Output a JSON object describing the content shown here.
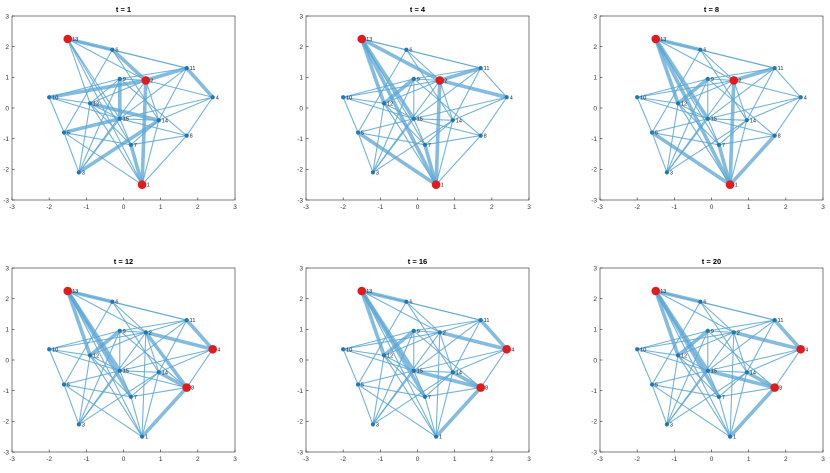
{
  "chart_data": {
    "type": "network",
    "layout": "2x3 grid of panels",
    "xlim": [
      -3,
      3
    ],
    "ylim": [
      -3,
      3
    ],
    "xticks": [
      "-3",
      "-2",
      "-1",
      "0",
      "1",
      "2",
      "3"
    ],
    "yticks": [
      "3",
      "2",
      "1",
      "0",
      "-1",
      "-2",
      "-3"
    ],
    "colors": {
      "edge": "#5aa6d6",
      "node": "#1f77b4",
      "highlight": "#e31a1c",
      "axes": "#262626"
    },
    "nodes": [
      {
        "id": "1",
        "x": 0.5,
        "y": -2.5
      },
      {
        "id": "2",
        "x": 0.6,
        "y": 0.9
      },
      {
        "id": "3",
        "x": -1.2,
        "y": -2.1
      },
      {
        "id": "4",
        "x": 2.4,
        "y": 0.35
      },
      {
        "id": "5",
        "x": -1.6,
        "y": -0.8
      },
      {
        "id": "6",
        "x": -0.3,
        "y": 1.9
      },
      {
        "id": "7",
        "x": 0.2,
        "y": -1.2
      },
      {
        "id": "8",
        "x": 1.7,
        "y": -0.9
      },
      {
        "id": "9",
        "x": -0.1,
        "y": 0.95
      },
      {
        "id": "10",
        "x": -2.0,
        "y": 0.35
      },
      {
        "id": "11",
        "x": 1.7,
        "y": 1.3
      },
      {
        "id": "12",
        "x": -0.9,
        "y": 0.15
      },
      {
        "id": "13",
        "x": -1.5,
        "y": 2.25
      },
      {
        "id": "14",
        "x": 0.95,
        "y": -0.4
      },
      {
        "id": "15",
        "x": -0.1,
        "y": -0.35
      }
    ],
    "edges": [
      [
        "13",
        "6"
      ],
      [
        "13",
        "12"
      ],
      [
        "13",
        "15"
      ],
      [
        "13",
        "7"
      ],
      [
        "13",
        "1"
      ],
      [
        "13",
        "11"
      ],
      [
        "13",
        "2"
      ],
      [
        "6",
        "11"
      ],
      [
        "6",
        "2"
      ],
      [
        "6",
        "14"
      ],
      [
        "6",
        "5"
      ],
      [
        "10",
        "9"
      ],
      [
        "10",
        "2"
      ],
      [
        "10",
        "12"
      ],
      [
        "10",
        "15"
      ],
      [
        "10",
        "5"
      ],
      [
        "12",
        "9"
      ],
      [
        "12",
        "2"
      ],
      [
        "12",
        "15"
      ],
      [
        "12",
        "7"
      ],
      [
        "12",
        "3"
      ],
      [
        "9",
        "2"
      ],
      [
        "9",
        "15"
      ],
      [
        "9",
        "8"
      ],
      [
        "9",
        "11"
      ],
      [
        "2",
        "11"
      ],
      [
        "2",
        "4"
      ],
      [
        "2",
        "14"
      ],
      [
        "2",
        "1"
      ],
      [
        "2",
        "3"
      ],
      [
        "11",
        "4"
      ],
      [
        "11",
        "14"
      ],
      [
        "11",
        "15"
      ],
      [
        "4",
        "15"
      ],
      [
        "4",
        "14"
      ],
      [
        "4",
        "8"
      ],
      [
        "15",
        "14"
      ],
      [
        "15",
        "8"
      ],
      [
        "15",
        "7"
      ],
      [
        "15",
        "3"
      ],
      [
        "15",
        "5"
      ],
      [
        "14",
        "7"
      ],
      [
        "14",
        "1"
      ],
      [
        "14",
        "3"
      ],
      [
        "8",
        "7"
      ],
      [
        "8",
        "1"
      ],
      [
        "7",
        "1"
      ],
      [
        "7",
        "5"
      ],
      [
        "5",
        "1"
      ],
      [
        "5",
        "3"
      ],
      [
        "3",
        "9"
      ],
      [
        "1",
        "12"
      ]
    ],
    "panels": [
      {
        "title": "t = 1",
        "highlight": [
          "13",
          "2",
          "1"
        ],
        "thick": [
          [
            "2",
            "1"
          ],
          [
            "2",
            "10"
          ],
          [
            "2",
            "11"
          ],
          [
            "13",
            "6"
          ],
          [
            "6",
            "2"
          ],
          [
            "9",
            "15"
          ],
          [
            "12",
            "14"
          ],
          [
            "15",
            "5"
          ],
          [
            "7",
            "1"
          ],
          [
            "11",
            "4"
          ],
          [
            "14",
            "3"
          ]
        ]
      },
      {
        "title": "t = 4",
        "highlight": [
          "13",
          "2",
          "1"
        ],
        "thick": [
          [
            "13",
            "12"
          ],
          [
            "13",
            "15"
          ],
          [
            "13",
            "1"
          ],
          [
            "13",
            "2"
          ],
          [
            "2",
            "1"
          ],
          [
            "7",
            "1"
          ],
          [
            "5",
            "1"
          ],
          [
            "2",
            "4"
          ],
          [
            "2",
            "11"
          ],
          [
            "12",
            "9"
          ]
        ]
      },
      {
        "title": "t = 8",
        "highlight": [
          "13",
          "2",
          "1"
        ],
        "thick": [
          [
            "13",
            "12"
          ],
          [
            "13",
            "15"
          ],
          [
            "13",
            "1"
          ],
          [
            "13",
            "6"
          ],
          [
            "2",
            "1"
          ],
          [
            "8",
            "1"
          ],
          [
            "7",
            "1"
          ],
          [
            "12",
            "9"
          ],
          [
            "2",
            "11"
          ],
          [
            "5",
            "1"
          ]
        ]
      },
      {
        "title": "t = 12",
        "highlight": [
          "13",
          "4",
          "8"
        ],
        "thick": [
          [
            "13",
            "12"
          ],
          [
            "13",
            "7"
          ],
          [
            "13",
            "6"
          ],
          [
            "13",
            "15"
          ],
          [
            "2",
            "4"
          ],
          [
            "11",
            "4"
          ],
          [
            "8",
            "1"
          ],
          [
            "2",
            "8"
          ],
          [
            "14",
            "8"
          ],
          [
            "12",
            "9"
          ]
        ]
      },
      {
        "title": "t = 16",
        "highlight": [
          "13",
          "4",
          "8"
        ],
        "thick": [
          [
            "13",
            "12"
          ],
          [
            "13",
            "15"
          ],
          [
            "13",
            "7"
          ],
          [
            "13",
            "6"
          ],
          [
            "15",
            "8"
          ],
          [
            "2",
            "4"
          ],
          [
            "11",
            "4"
          ],
          [
            "8",
            "1"
          ],
          [
            "14",
            "8"
          ],
          [
            "12",
            "9"
          ]
        ]
      },
      {
        "title": "t = 20",
        "highlight": [
          "13",
          "4",
          "8"
        ],
        "thick": [
          [
            "13",
            "12"
          ],
          [
            "13",
            "15"
          ],
          [
            "13",
            "7"
          ],
          [
            "13",
            "6"
          ],
          [
            "2",
            "4"
          ],
          [
            "11",
            "4"
          ],
          [
            "8",
            "1"
          ],
          [
            "15",
            "8"
          ],
          [
            "12",
            "9"
          ],
          [
            "14",
            "8"
          ]
        ]
      }
    ]
  }
}
